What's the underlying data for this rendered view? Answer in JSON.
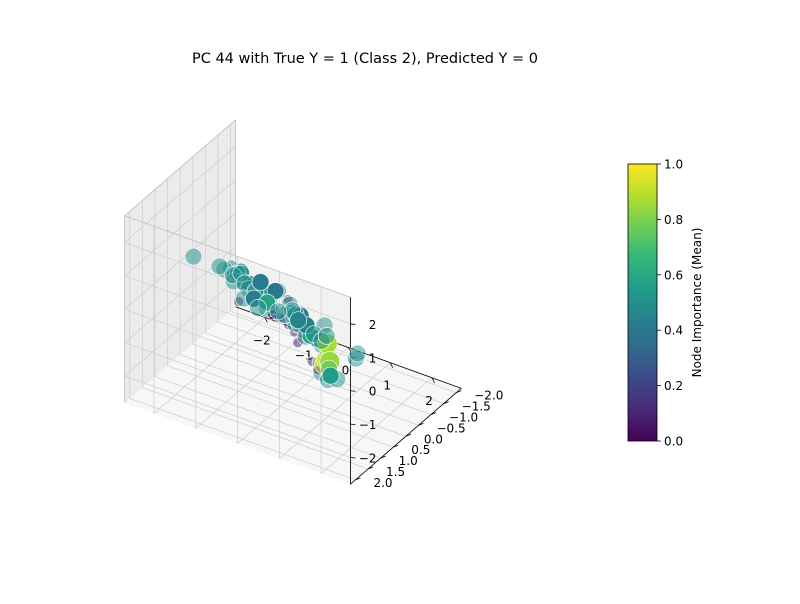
{
  "chart_data": {
    "type": "scatter3d",
    "title": "PC 44 with True Y = 1 (Class 2), Predicted Y = 0",
    "axes": {
      "x": {
        "ticks": [
          -2,
          -1,
          0,
          1,
          2
        ],
        "tick_labels": [
          "−2",
          "−1",
          "0",
          "1",
          "2"
        ],
        "range": [
          -2.7,
          2.7
        ]
      },
      "y": {
        "ticks": [
          -2,
          -1.5,
          -1,
          -0.5,
          0,
          0.5,
          1,
          1.5,
          2
        ],
        "tick_labels": [
          "−2.0",
          "−1.5",
          "−1.0",
          "−0.5",
          "0.0",
          "0.5",
          "1.0",
          "1.5",
          "2.0"
        ],
        "range": [
          -2.2,
          2.2
        ]
      },
      "z": {
        "ticks": [
          -2,
          -1,
          0,
          1,
          2
        ],
        "tick_labels": [
          "−2",
          "−1",
          "0",
          "1",
          "2"
        ],
        "range": [
          -2.8,
          2.8
        ]
      }
    },
    "grid": true,
    "colorbar": {
      "label": "Node Importance (Mean)",
      "range": [
        0,
        1
      ],
      "ticks": [
        0,
        0.2,
        0.4,
        0.6,
        0.8,
        1.0
      ],
      "tick_labels": [
        "0.0",
        "0.2",
        "0.4",
        "0.6",
        "0.8",
        "1.0"
      ],
      "colormap": "viridis",
      "stops": [
        "#440154",
        "#482878",
        "#3e4989",
        "#31688e",
        "#26828e",
        "#1f9e89",
        "#35b779",
        "#6ece58",
        "#b5de2b",
        "#fde725"
      ]
    },
    "series": [
      {
        "role": "low-importance",
        "size": "small",
        "points": [
          {
            "x": 0.3,
            "y": 1.3,
            "z": 0.6,
            "v": 0.02,
            "a": 1.0
          },
          {
            "x": 0.5,
            "y": 1.0,
            "z": 0.2,
            "v": 0.05,
            "a": 0.5
          },
          {
            "x": 0.1,
            "y": 0.9,
            "z": 0.4,
            "v": 0.08,
            "a": 0.5
          },
          {
            "x": 1.0,
            "y": 1.6,
            "z": 0.6,
            "v": 0.06,
            "a": 0.5
          },
          {
            "x": 1.2,
            "y": 1.8,
            "z": 0.5,
            "v": 0.05,
            "a": 0.5
          },
          {
            "x": 0.4,
            "y": 1.2,
            "z": 0.5,
            "v": 0.1,
            "a": 0.5
          },
          {
            "x": 0.0,
            "y": 0.2,
            "z": 0.2,
            "v": 0.04,
            "a": 0.5
          },
          {
            "x": 0.6,
            "y": 0.6,
            "z": -0.3,
            "v": 0.05,
            "a": 0.5
          },
          {
            "x": 0.7,
            "y": 0.5,
            "z": -0.4,
            "v": 0.03,
            "a": 0.5
          },
          {
            "x": 0.2,
            "y": 0.4,
            "z": -0.1,
            "v": 0.01,
            "a": 1.0
          },
          {
            "x": 0.3,
            "y": 0.3,
            "z": -0.3,
            "v": 0.01,
            "a": 1.0
          },
          {
            "x": 0.5,
            "y": 0.2,
            "z": -0.6,
            "v": 0.02,
            "a": 1.0
          },
          {
            "x": -0.9,
            "y": -0.4,
            "z": -0.6,
            "v": 0.06,
            "a": 0.5
          },
          {
            "x": -0.8,
            "y": -0.3,
            "z": -0.5,
            "v": 0.04,
            "a": 0.5
          },
          {
            "x": -1.9,
            "y": -1.0,
            "z": -1.5,
            "v": 0.05,
            "a": 0.5
          },
          {
            "x": 0.9,
            "y": 0.5,
            "z": -1.3,
            "v": 0.05,
            "a": 0.5
          },
          {
            "x": 0.7,
            "y": 0.4,
            "z": -1.2,
            "v": 0.06,
            "a": 0.5
          },
          {
            "x": -0.5,
            "y": 0.3,
            "z": 0.2,
            "v": 0.04,
            "a": 0.5
          },
          {
            "x": -0.3,
            "y": -0.1,
            "z": -0.7,
            "v": 0.05,
            "a": 0.5
          }
        ]
      },
      {
        "role": "high-importance",
        "size": "large",
        "points": [
          {
            "x": -2.5,
            "y": -0.2,
            "z": 0.1,
            "v": 0.5,
            "a": 0.5
          },
          {
            "x": -2.0,
            "y": -0.4,
            "z": -0.1,
            "v": 0.5,
            "a": 0.5
          },
          {
            "x": -1.6,
            "y": -0.3,
            "z": -0.3,
            "v": 0.5,
            "a": 0.5
          },
          {
            "x": -1.4,
            "y": 0.4,
            "z": 0.6,
            "v": 0.5,
            "a": 0.5
          },
          {
            "x": -1.1,
            "y": 0.5,
            "z": 0.6,
            "v": 0.5,
            "a": 0.5
          },
          {
            "x": -0.9,
            "y": 0.7,
            "z": 0.9,
            "v": 0.5,
            "a": 0.5
          },
          {
            "x": -0.4,
            "y": 1.8,
            "z": 2.0,
            "v": 0.5,
            "a": 0.5
          },
          {
            "x": -0.1,
            "y": 1.9,
            "z": 2.1,
            "v": 0.5,
            "a": 1.0
          },
          {
            "x": -0.2,
            "y": 1.6,
            "z": 1.5,
            "v": 0.5,
            "a": 0.5
          },
          {
            "x": -0.6,
            "y": 1.0,
            "z": 1.0,
            "v": 0.5,
            "a": 0.5
          },
          {
            "x": -0.5,
            "y": 0.9,
            "z": 0.9,
            "v": 0.42,
            "a": 1.0
          },
          {
            "x": -0.3,
            "y": 0.5,
            "z": 0.5,
            "v": 0.5,
            "a": 0.5
          },
          {
            "x": -0.2,
            "y": 0.6,
            "z": 0.4,
            "v": 0.5,
            "a": 0.5
          },
          {
            "x": -0.4,
            "y": 0.3,
            "z": 0.3,
            "v": 0.55,
            "a": 1.0
          },
          {
            "x": -0.6,
            "y": 0.2,
            "z": 0.2,
            "v": 0.4,
            "a": 1.0
          },
          {
            "x": -1.3,
            "y": -0.1,
            "z": 0.2,
            "v": 0.5,
            "a": 0.5
          },
          {
            "x": -1.0,
            "y": 0.1,
            "z": 0.0,
            "v": 0.5,
            "a": 0.5
          },
          {
            "x": -1.2,
            "y": -0.5,
            "z": -0.6,
            "v": 0.5,
            "a": 0.5
          },
          {
            "x": -1.8,
            "y": -0.6,
            "z": -0.4,
            "v": 0.5,
            "a": 0.5
          },
          {
            "x": -1.7,
            "y": -0.9,
            "z": -0.8,
            "v": 0.5,
            "a": 0.5
          },
          {
            "x": -1.5,
            "y": -1.0,
            "z": -1.0,
            "v": 0.5,
            "a": 0.5
          },
          {
            "x": -1.2,
            "y": -0.7,
            "z": -0.4,
            "v": 0.42,
            "a": 1.0
          },
          {
            "x": -0.9,
            "y": -0.8,
            "z": -0.6,
            "v": 0.4,
            "a": 1.0
          },
          {
            "x": -0.6,
            "y": -0.4,
            "z": -0.2,
            "v": 0.5,
            "a": 0.5
          },
          {
            "x": -0.5,
            "y": 0.2,
            "z": -0.3,
            "v": 0.5,
            "a": 0.5
          },
          {
            "x": -0.8,
            "y": 0.0,
            "z": -0.2,
            "v": 0.5,
            "a": 0.5
          },
          {
            "x": -0.2,
            "y": -0.2,
            "z": -0.3,
            "v": 0.5,
            "a": 0.5
          },
          {
            "x": 0.0,
            "y": -0.3,
            "z": -0.6,
            "v": 0.45,
            "a": 1.0
          },
          {
            "x": -0.2,
            "y": -0.3,
            "z": -0.6,
            "v": 0.5,
            "a": 0.5
          },
          {
            "x": -0.5,
            "y": -0.8,
            "z": -1.0,
            "v": 0.5,
            "a": 0.5
          },
          {
            "x": -0.3,
            "y": -0.6,
            "z": -0.9,
            "v": 0.5,
            "a": 0.5
          },
          {
            "x": -0.1,
            "y": -0.7,
            "z": -1.2,
            "v": 0.45,
            "a": 1.0
          },
          {
            "x": 0.2,
            "y": -0.5,
            "z": -1.2,
            "v": 0.5,
            "a": 0.5
          },
          {
            "x": 0.2,
            "y": -0.8,
            "z": -1.6,
            "v": 0.5,
            "a": 0.5
          },
          {
            "x": -0.6,
            "y": -1.2,
            "z": -1.6,
            "v": 0.45,
            "a": 1.0
          },
          {
            "x": -0.8,
            "y": -1.0,
            "z": -1.4,
            "v": 0.5,
            "a": 0.5
          },
          {
            "x": -1.4,
            "y": -1.3,
            "z": -1.5,
            "v": 0.58,
            "a": 1.0
          },
          {
            "x": -1.9,
            "y": -1.6,
            "z": -1.8,
            "v": 0.42,
            "a": 1.0
          },
          {
            "x": -2.2,
            "y": -1.7,
            "z": -2.0,
            "v": 0.5,
            "a": 0.5
          },
          {
            "x": -1.5,
            "y": -1.9,
            "z": -2.2,
            "v": 0.5,
            "a": 0.5
          },
          {
            "x": -2.1,
            "y": -2.1,
            "z": -2.5,
            "v": 0.5,
            "a": 0.5
          },
          {
            "x": -0.4,
            "y": -2.0,
            "z": -2.5,
            "v": 0.5,
            "a": 0.5
          },
          {
            "x": 0.4,
            "y": -1.9,
            "z": -2.6,
            "v": 0.5,
            "a": 0.5
          },
          {
            "x": 0.6,
            "y": -1.5,
            "z": -2.4,
            "v": 0.5,
            "a": 0.5
          },
          {
            "x": 0.2,
            "y": 0.3,
            "z": -0.2,
            "v": 0.5,
            "a": 0.5
          },
          {
            "x": 0.3,
            "y": 0.5,
            "z": 0.1,
            "v": 0.5,
            "a": 0.5
          },
          {
            "x": 0.6,
            "y": 0.9,
            "z": 0.2,
            "v": 0.5,
            "a": 0.5
          },
          {
            "x": 0.8,
            "y": 1.1,
            "z": 0.5,
            "v": 0.5,
            "a": 0.5
          },
          {
            "x": 1.0,
            "y": 0.7,
            "z": -0.2,
            "v": 0.42,
            "a": 1.0
          },
          {
            "x": 1.6,
            "y": 1.5,
            "z": 0.4,
            "v": 0.5,
            "a": 0.5
          },
          {
            "x": 1.9,
            "y": 1.9,
            "z": 1.4,
            "v": 0.5,
            "a": 0.5
          },
          {
            "x": 1.7,
            "y": 1.3,
            "z": -0.6,
            "v": 0.5,
            "a": 0.5
          },
          {
            "x": 1.4,
            "y": 1.2,
            "z": -0.7,
            "v": 0.5,
            "a": 0.5
          },
          {
            "x": 1.6,
            "y": 0.9,
            "z": -1.0,
            "v": 0.5,
            "a": 0.5
          },
          {
            "x": 1.2,
            "y": 0.6,
            "z": -1.4,
            "v": 0.5,
            "a": 0.5
          },
          {
            "x": 0.3,
            "y": 0.0,
            "z": -0.9,
            "v": 0.5,
            "a": 0.5
          },
          {
            "x": 0.1,
            "y": -0.1,
            "z": -0.7,
            "v": 0.5,
            "a": 0.5
          },
          {
            "x": 0.3,
            "y": -0.2,
            "z": -1.0,
            "v": 0.55,
            "a": 1.0
          },
          {
            "x": 0.0,
            "y": 0.0,
            "z": -0.4,
            "v": 0.5,
            "a": 0.5
          },
          {
            "x": 1.1,
            "y": 0.5,
            "z": -0.9,
            "v": 0.9,
            "a": 0.5
          },
          {
            "x": 1.3,
            "y": 1.0,
            "z": -0.6,
            "v": 0.88,
            "a": 0.5
          },
          {
            "x": 1.3,
            "y": 0.9,
            "z": -0.7,
            "v": 0.92,
            "a": 0.5
          },
          {
            "x": 1.0,
            "y": 0.3,
            "z": -0.6,
            "v": 0.87,
            "a": 1.0
          },
          {
            "x": 1.0,
            "y": 0.2,
            "z": -1.2,
            "v": 0.85,
            "a": 1.0
          },
          {
            "x": 0.8,
            "y": -0.1,
            "z": -1.7,
            "v": 0.7,
            "a": 0.5
          },
          {
            "x": 0.9,
            "y": 0.0,
            "z": -1.8,
            "v": 0.55,
            "a": 1.0
          }
        ]
      }
    ]
  }
}
